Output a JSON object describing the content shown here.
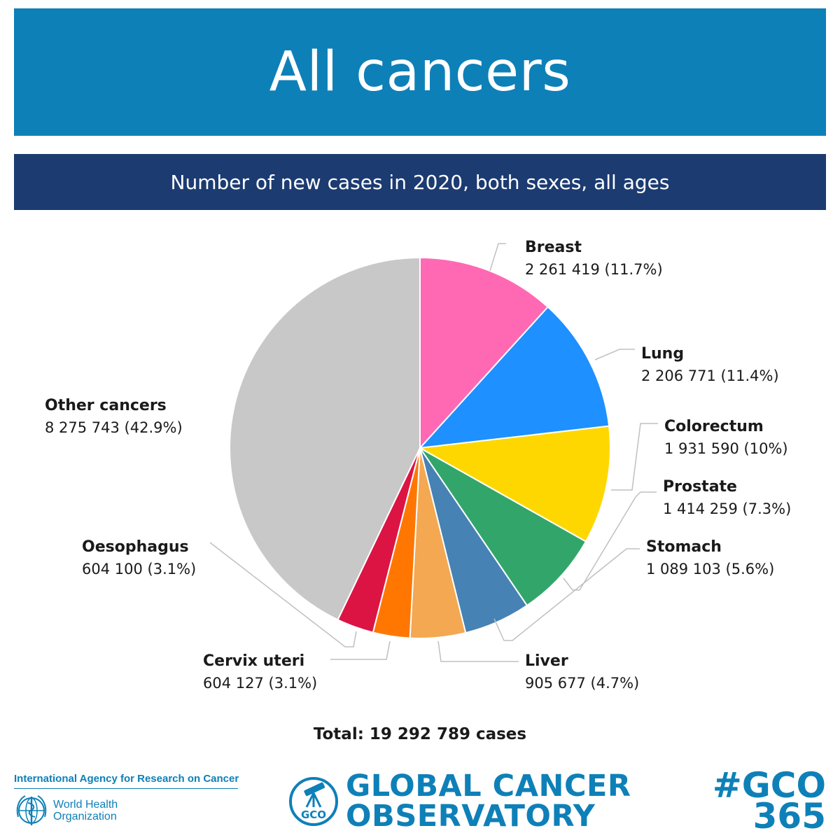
{
  "header": {
    "title": "All cancers",
    "subtitle": "Number of new cases in 2020, both sexes, all ages"
  },
  "chart_data": {
    "type": "pie",
    "slices": [
      {
        "label": "Breast",
        "value": 2261419,
        "value_text": "2 261 419",
        "percent_text": "(11.7%)",
        "color": "#ff69b4"
      },
      {
        "label": "Lung",
        "value": 2206771,
        "value_text": "2 206 771",
        "percent_text": "(11.4%)",
        "color": "#1e90ff"
      },
      {
        "label": "Colorectum",
        "value": 1931590,
        "value_text": "1 931 590",
        "percent_text": "(10%)",
        "color": "#ffd700"
      },
      {
        "label": "Prostate",
        "value": 1414259,
        "value_text": "1 414 259",
        "percent_text": "(7.3%)",
        "color": "#32a66a"
      },
      {
        "label": "Stomach",
        "value": 1089103,
        "value_text": "1 089 103",
        "percent_text": "(5.6%)",
        "color": "#4682b4"
      },
      {
        "label": "Liver",
        "value": 905677,
        "value_text": "905 677",
        "percent_text": "(4.7%)",
        "color": "#f4a852"
      },
      {
        "label": "Cervix uteri",
        "value": 604127,
        "value_text": "604 127",
        "percent_text": "(3.1%)",
        "color": "#ff7700"
      },
      {
        "label": "Oesophagus",
        "value": 604100,
        "value_text": "604 100",
        "percent_text": "(3.1%)",
        "color": "#dc1444"
      },
      {
        "label": "Other cancers",
        "value": 8275743,
        "value_text": "8 275 743",
        "percent_text": "(42.9%)",
        "color": "#c8c8c8"
      }
    ],
    "start": "12 o'clock",
    "direction": "clockwise"
  },
  "total_text": "Total: 19 292 789 cases",
  "footer": {
    "iarc": "International Agency for Research on Cancer",
    "who_line1": "World Health",
    "who_line2": "Organization",
    "gco_line1": "GLOBAL CANCER",
    "gco_line2": "OBSERVATORY",
    "gco_emblem_text": "GCO",
    "hashtag_line1": "#GCO",
    "hashtag_line2": "365"
  },
  "colors": {
    "title_banner": "#0e80b8",
    "subtitle_banner": "#1c3b71",
    "brand": "#0e80b8",
    "leader_line": "#c0c0c0"
  }
}
